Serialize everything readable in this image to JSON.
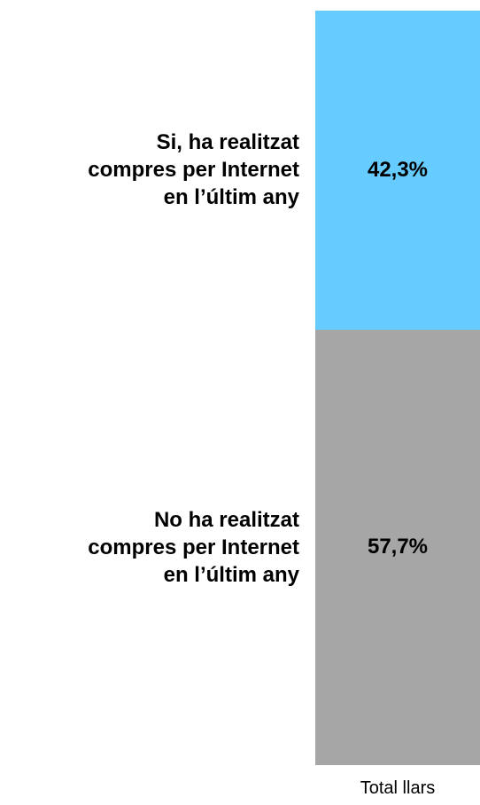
{
  "chart_data": {
    "type": "bar",
    "subtype": "stacked-100",
    "categories": [
      "Total llars"
    ],
    "series": [
      {
        "label_lines": [
          "Si, ha realitzat",
          "compres per Internet",
          "en l’últim any"
        ],
        "value": 42.3,
        "value_label": "42,3%",
        "color": "#66ccff"
      },
      {
        "label_lines": [
          "No ha realitzat",
          "compres per Internet",
          "en l’últim any"
        ],
        "value": 57.7,
        "value_label": "57,7%",
        "color": "#a6a6a6"
      }
    ],
    "ylim": [
      0,
      100
    ],
    "grid": false,
    "legend": "left"
  }
}
